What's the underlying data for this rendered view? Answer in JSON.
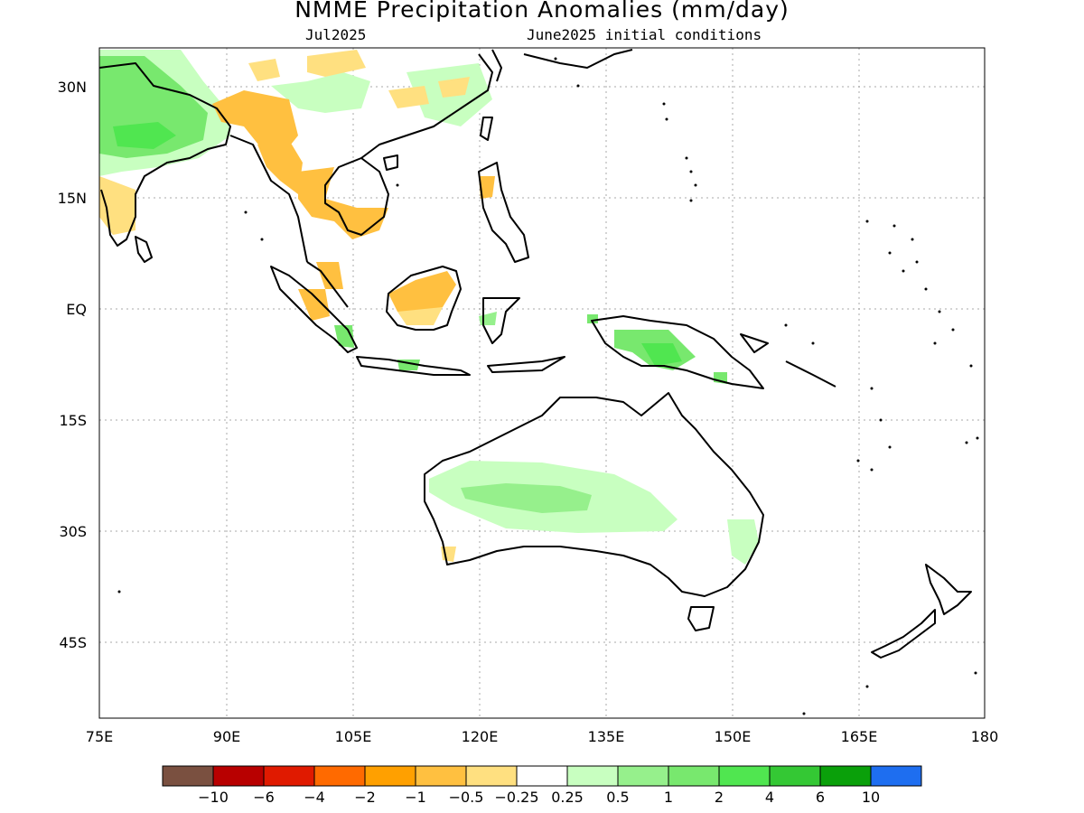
{
  "title": "NMME Precipitation Anomalies (mm/day)",
  "subtitle_left": "Jul2025",
  "subtitle_right": "June2025 initial conditions",
  "lon_ticks": [
    "75E",
    "90E",
    "105E",
    "120E",
    "135E",
    "150E",
    "165E",
    "180"
  ],
  "lat_ticks": [
    "30N",
    "15N",
    "EQ",
    "15S",
    "30S",
    "45S"
  ],
  "map_extent": {
    "lon": [
      75,
      180
    ],
    "lat": [
      -55,
      35
    ]
  },
  "colorbar": {
    "colors": [
      "#7a5040",
      "#b80000",
      "#e01a00",
      "#ff6a00",
      "#ffa000",
      "#ffc040",
      "#ffe080",
      "#ffffff",
      "#c8ffc0",
      "#96f08c",
      "#78e86e",
      "#50e650",
      "#34c834",
      "#0aa00a",
      "#1e6ef0"
    ],
    "labels": [
      "-10",
      "-6",
      "-4",
      "-2",
      "-1",
      "-0.5",
      "-0.25",
      "0.25",
      "0.5",
      "1",
      "2",
      "4",
      "6",
      "10"
    ]
  }
}
